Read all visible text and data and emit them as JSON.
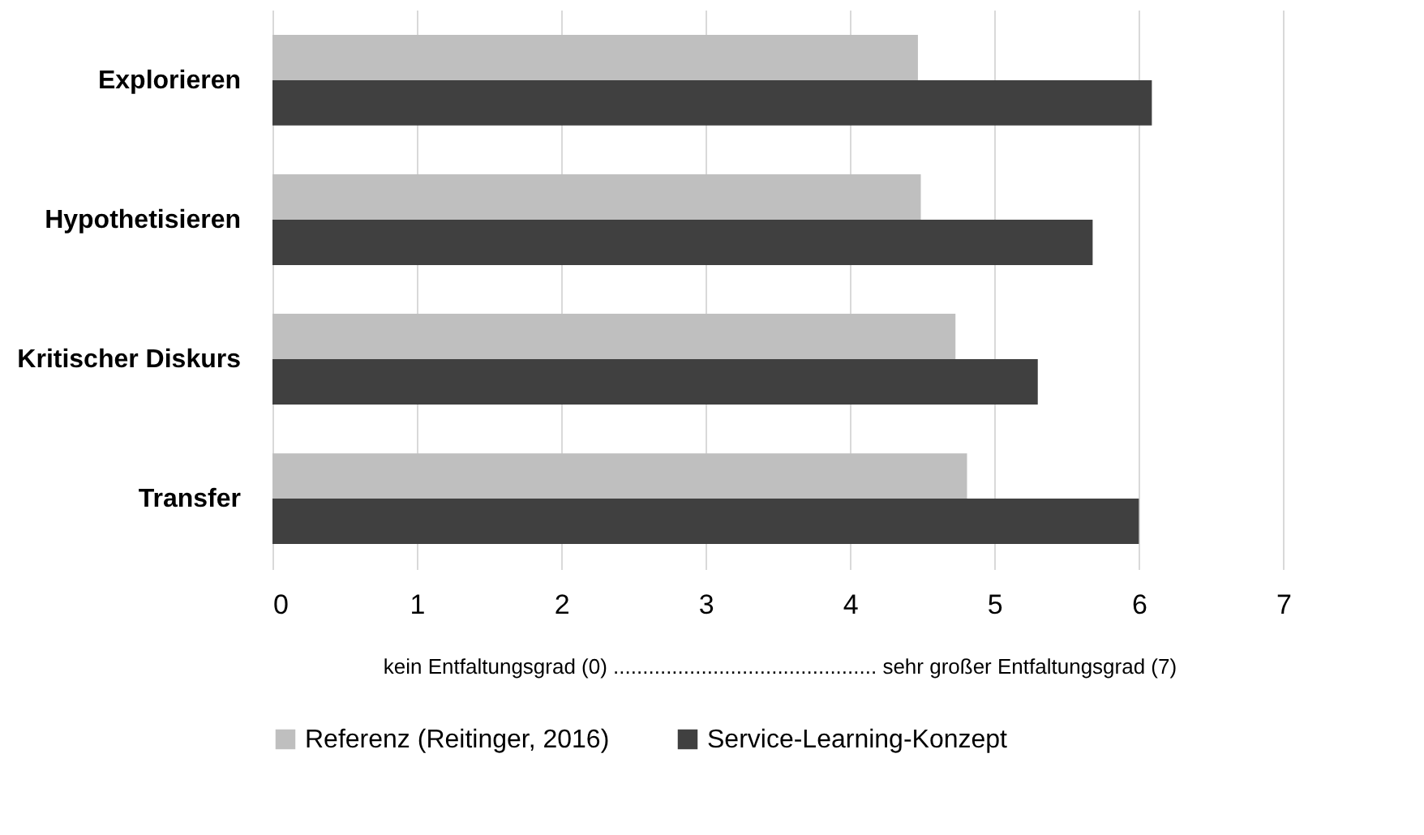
{
  "chart_data": {
    "type": "bar",
    "orientation": "horizontal",
    "categories": [
      "Explorieren",
      "Hypothetisieren",
      "Kritischer Diskurs",
      "Transfer"
    ],
    "series": [
      {
        "name": "Referenz (Reitinger, 2016)",
        "color": "#bfbfbf",
        "values": [
          4.47,
          4.49,
          4.73,
          4.81
        ]
      },
      {
        "name": "Service-Learning-Konzept",
        "color": "#404040",
        "values": [
          6.09,
          5.68,
          5.3,
          6.0
        ]
      }
    ],
    "xlabel": "kein Entfaltungsgrad (0)      .............................................      sehr großer Entfaltungsgrad (7)",
    "xlim": [
      0,
      7.02
    ],
    "xticks": [
      0,
      1,
      2,
      3,
      4,
      5,
      6,
      7
    ],
    "grid": "x",
    "legend": "bottom"
  }
}
